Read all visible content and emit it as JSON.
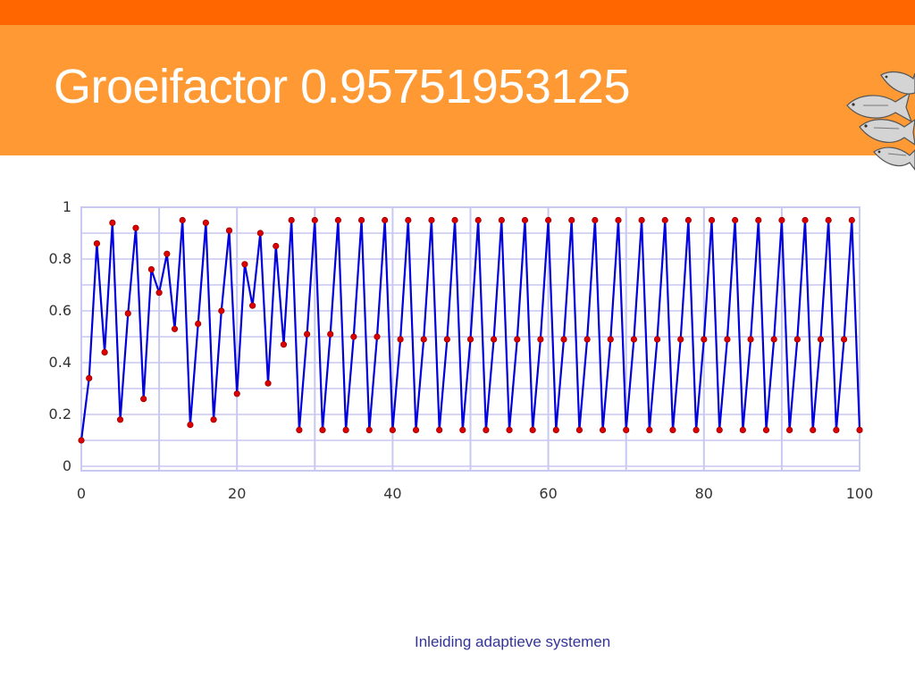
{
  "slide": {
    "title": "Groeifactor 0.95751953125",
    "footer": "Inleiding adaptieve systemen",
    "logo_icon": "fish-school-icon"
  },
  "colors": {
    "top_strip": "#ff6600",
    "title_band": "#ff9933",
    "line": "#0000dd",
    "marker": "#dd0000",
    "grid": "#c8c8f0"
  },
  "chart_data": {
    "type": "line",
    "title": "",
    "xlabel": "",
    "ylabel": "",
    "xlim": [
      0,
      100
    ],
    "ylim": [
      0,
      1
    ],
    "x_ticks": [
      "0",
      "20",
      "40",
      "60",
      "80",
      "100"
    ],
    "y_ticks": [
      "0",
      "0.2",
      "0.4",
      "0.6",
      "0.8",
      "1"
    ],
    "grid": true,
    "legend": "none",
    "markers": true,
    "series": [
      {
        "x": [
          0,
          1,
          2,
          3,
          4,
          5,
          6,
          7,
          8,
          9,
          10,
          11,
          12,
          13,
          14,
          15,
          16,
          17,
          18,
          19,
          20,
          21,
          22,
          23,
          24,
          25,
          26,
          27,
          28,
          29,
          30,
          31,
          32,
          33,
          34,
          35,
          36,
          37,
          38,
          39,
          40,
          41,
          42,
          43,
          44,
          45,
          46,
          47,
          48,
          49,
          50,
          51,
          52,
          53,
          54,
          55,
          56,
          57,
          58,
          59,
          60,
          61,
          62,
          63,
          64,
          65,
          66,
          67,
          68,
          69,
          70,
          71,
          72,
          73,
          74,
          75,
          76,
          77,
          78,
          79,
          80,
          81,
          82,
          83,
          84,
          85,
          86,
          87,
          88,
          89,
          90,
          91,
          92,
          93,
          94,
          95,
          96,
          97,
          98,
          99,
          100
        ],
        "values": [
          0.1,
          0.34,
          0.86,
          0.44,
          0.94,
          0.18,
          0.59,
          0.92,
          0.26,
          0.76,
          0.67,
          0.82,
          0.53,
          0.95,
          0.16,
          0.55,
          0.94,
          0.18,
          0.6,
          0.91,
          0.28,
          0.78,
          0.62,
          0.9,
          0.32,
          0.85,
          0.47,
          0.95,
          0.14,
          0.51,
          0.95,
          0.14,
          0.51,
          0.95,
          0.14,
          0.5,
          0.95,
          0.14,
          0.5,
          0.95,
          0.14,
          0.49,
          0.95,
          0.14,
          0.49,
          0.95,
          0.14,
          0.49,
          0.95,
          0.14,
          0.49,
          0.95,
          0.14,
          0.49,
          0.95,
          0.14,
          0.49,
          0.95,
          0.14,
          0.49,
          0.95,
          0.14,
          0.49,
          0.95,
          0.14,
          0.49,
          0.95,
          0.14,
          0.49,
          0.95,
          0.14,
          0.49,
          0.95,
          0.14,
          0.49,
          0.95,
          0.14,
          0.49,
          0.95,
          0.14,
          0.49,
          0.95,
          0.14,
          0.49,
          0.95,
          0.14,
          0.49,
          0.95,
          0.14,
          0.49,
          0.95,
          0.14,
          0.49,
          0.95,
          0.14,
          0.49,
          0.95,
          0.14,
          0.49,
          0.95,
          0.14
        ]
      }
    ]
  }
}
